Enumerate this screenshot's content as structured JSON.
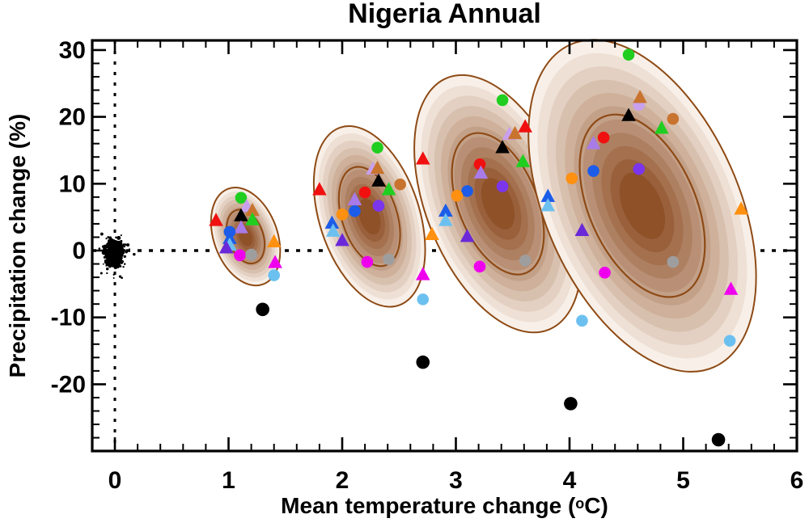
{
  "title": "Nigeria Annual",
  "axes": {
    "ylabel": "Precipitation change (%)",
    "xlabel_prefix": "Mean temperature change (",
    "xlabel_sup": "o",
    "xlabel_suffix": "C)"
  },
  "chart_data": {
    "type": "scatter",
    "title": "Nigeria Annual",
    "xlabel": "Mean temperature change (°C)",
    "ylabel": "Precipitation change (%)",
    "xlim": [
      -0.2,
      6.0
    ],
    "ylim": [
      -30.0,
      31.4
    ],
    "x_ticks": [
      0,
      1,
      2,
      3,
      4,
      5,
      6
    ],
    "y_ticks": [
      30,
      20,
      10,
      0,
      -10,
      -20
    ],
    "x_minor_step": 0.2,
    "y_minor_step": 2,
    "zero_lines": {
      "x": 0,
      "y": 0,
      "style": "dotted",
      "color": "#000000"
    },
    "grid": false,
    "colors": {
      "green": "#20CE20",
      "red": "#F01010",
      "blue": "#1C5CE8",
      "sky": "#6CC0F0",
      "orange": "#FF9010",
      "peru": "#C8742F",
      "purple": "#7B35EC",
      "mpurple": "#A87BE8",
      "plum": "#C9A0EE",
      "dviolet": "#6A28D8",
      "magenta": "#EE00EE",
      "gray": "#9E9E9E",
      "black": "#000000"
    },
    "contour_fill_colors": [
      "#F8F0E8",
      "#EEE0D5",
      "#E3D0C2",
      "#D8C0AE",
      "#CEB09B",
      "#C3A088",
      "#B99075",
      "#AE8062",
      "#A4704E",
      "#99603B",
      "#8F5128"
    ],
    "contour_line_color": "#8E4A15",
    "origin_cloud": {
      "t_center": 0.0,
      "p_center": -0.3,
      "n_core": 420,
      "t_sigma": 0.055,
      "p_sigma": 1.3,
      "n_outlier": 70,
      "t_sigma_out": 0.1,
      "p_sigma_out": 2.4
    },
    "clusters": [
      {
        "name": "cluster-1",
        "ellipse": {
          "t": 1.15,
          "p": 2.1,
          "rt": 0.28,
          "rp": 7.6,
          "rot_deg_screen": -20
        },
        "markers": [
          {
            "shape": "circle",
            "color": "green",
            "t": 1.11,
            "p": 7.9
          },
          {
            "shape": "triangle",
            "color": "red",
            "t": 0.89,
            "p": 4.5
          },
          {
            "shape": "triangle",
            "color": "plum",
            "t": 1.16,
            "p": 6.6
          },
          {
            "shape": "triangle",
            "color": "peru",
            "t": 1.21,
            "p": 6.0
          },
          {
            "shape": "triangle",
            "color": "black",
            "t": 1.11,
            "p": 5.2
          },
          {
            "shape": "triangle",
            "color": "green",
            "t": 1.21,
            "p": 4.6
          },
          {
            "shape": "triangle",
            "color": "mpurple",
            "t": 1.11,
            "p": 3.4
          },
          {
            "shape": "circle",
            "color": "blue",
            "t": 1.01,
            "p": 2.8
          },
          {
            "shape": "triangle",
            "color": "blue",
            "t": 1.01,
            "p": 1.8
          },
          {
            "shape": "triangle",
            "color": "sky",
            "t": 1.01,
            "p": 0.8
          },
          {
            "shape": "triangle",
            "color": "dviolet",
            "t": 0.98,
            "p": 0.4
          },
          {
            "shape": "circle",
            "color": "magenta",
            "t": 1.1,
            "p": -0.7
          },
          {
            "shape": "circle",
            "color": "gray",
            "t": 1.2,
            "p": -0.6
          },
          {
            "shape": "triangle",
            "color": "orange",
            "t": 1.4,
            "p": 1.3
          },
          {
            "shape": "triangle",
            "color": "magenta",
            "t": 1.41,
            "p": -1.8
          },
          {
            "shape": "circle",
            "color": "sky",
            "t": 1.4,
            "p": -3.7
          },
          {
            "shape": "circle",
            "color": "black",
            "t": 1.3,
            "p": -8.8
          }
        ]
      },
      {
        "name": "cluster-2",
        "ellipse": {
          "t": 2.24,
          "p": 5.1,
          "rt": 0.44,
          "rp": 14.0,
          "rot_deg_screen": -18
        },
        "markers": [
          {
            "shape": "circle",
            "color": "green",
            "t": 2.31,
            "p": 15.4
          },
          {
            "shape": "triangle",
            "color": "red",
            "t": 1.8,
            "p": 9.1
          },
          {
            "shape": "triangle",
            "color": "plum",
            "t": 2.27,
            "p": 12.2
          },
          {
            "shape": "triangle",
            "color": "peru",
            "t": 2.31,
            "p": 12.3
          },
          {
            "shape": "triangle",
            "color": "black",
            "t": 2.32,
            "p": 10.4
          },
          {
            "shape": "triangle",
            "color": "green",
            "t": 2.41,
            "p": 9.1
          },
          {
            "shape": "circle",
            "color": "peru",
            "t": 2.51,
            "p": 9.9
          },
          {
            "shape": "triangle",
            "color": "mpurple",
            "t": 2.11,
            "p": 7.6
          },
          {
            "shape": "circle",
            "color": "red",
            "t": 2.2,
            "p": 8.7
          },
          {
            "shape": "circle",
            "color": "purple",
            "t": 2.32,
            "p": 6.7
          },
          {
            "shape": "circle",
            "color": "blue",
            "t": 2.11,
            "p": 5.9
          },
          {
            "shape": "circle",
            "color": "orange",
            "t": 2.0,
            "p": 5.4
          },
          {
            "shape": "triangle",
            "color": "blue",
            "t": 1.91,
            "p": 4.1
          },
          {
            "shape": "triangle",
            "color": "sky",
            "t": 1.92,
            "p": 2.9
          },
          {
            "shape": "triangle",
            "color": "dviolet",
            "t": 2.0,
            "p": 1.5
          },
          {
            "shape": "circle",
            "color": "magenta",
            "t": 2.22,
            "p": -1.7
          },
          {
            "shape": "circle",
            "color": "gray",
            "t": 2.41,
            "p": -1.3
          },
          {
            "shape": "circle",
            "color": "black",
            "t": 2.71,
            "p": -16.7
          }
        ]
      },
      {
        "name": "cluster-3",
        "ellipse": {
          "t": 3.37,
          "p": 7.0,
          "rt": 0.63,
          "rp": 20.3,
          "rot_deg_screen": -22
        },
        "markers": [
          {
            "shape": "circle",
            "color": "green",
            "t": 3.41,
            "p": 22.5
          },
          {
            "shape": "triangle",
            "color": "red",
            "t": 2.71,
            "p": 13.7
          },
          {
            "shape": "triangle",
            "color": "plum",
            "t": 3.47,
            "p": 17.4
          },
          {
            "shape": "triangle",
            "color": "peru",
            "t": 3.52,
            "p": 17.5
          },
          {
            "shape": "triangle",
            "color": "black",
            "t": 3.41,
            "p": 15.4
          },
          {
            "shape": "triangle",
            "color": "green",
            "t": 3.59,
            "p": 13.3
          },
          {
            "shape": "circle",
            "color": "red",
            "t": 3.21,
            "p": 12.9
          },
          {
            "shape": "triangle",
            "color": "mpurple",
            "t": 3.22,
            "p": 11.6
          },
          {
            "shape": "circle",
            "color": "purple",
            "t": 3.41,
            "p": 9.6
          },
          {
            "shape": "circle",
            "color": "blue",
            "t": 3.1,
            "p": 8.9
          },
          {
            "shape": "circle",
            "color": "orange",
            "t": 3.01,
            "p": 8.2
          },
          {
            "shape": "triangle",
            "color": "blue",
            "t": 2.91,
            "p": 5.9
          },
          {
            "shape": "triangle",
            "color": "sky",
            "t": 2.91,
            "p": 4.5
          },
          {
            "shape": "triangle",
            "color": "orange",
            "t": 2.79,
            "p": 2.4
          },
          {
            "shape": "triangle",
            "color": "dviolet",
            "t": 3.1,
            "p": 2.1
          },
          {
            "shape": "circle",
            "color": "magenta",
            "t": 3.21,
            "p": -2.4
          },
          {
            "shape": "circle",
            "color": "gray",
            "t": 3.61,
            "p": -1.5
          },
          {
            "shape": "triangle",
            "color": "magenta",
            "t": 2.71,
            "p": -3.6
          },
          {
            "shape": "circle",
            "color": "sky",
            "t": 2.71,
            "p": -7.3
          },
          {
            "shape": "circle",
            "color": "sky",
            "t": 4.11,
            "p": -10.5
          },
          {
            "shape": "circle",
            "color": "black",
            "t": 4.01,
            "p": -22.9
          }
        ]
      },
      {
        "name": "cluster-4",
        "ellipse": {
          "t": 4.64,
          "p": 6.7,
          "rt": 0.85,
          "rp": 26.4,
          "rot_deg_screen": -24
        },
        "markers": [
          {
            "shape": "circle",
            "color": "green",
            "t": 4.52,
            "p": 29.3
          },
          {
            "shape": "triangle",
            "color": "red",
            "t": 3.61,
            "p": 18.5
          },
          {
            "shape": "circle",
            "color": "plum",
            "t": 4.61,
            "p": 21.8
          },
          {
            "shape": "triangle",
            "color": "peru",
            "t": 4.62,
            "p": 22.9
          },
          {
            "shape": "triangle",
            "color": "black",
            "t": 4.52,
            "p": 20.2
          },
          {
            "shape": "circle",
            "color": "peru",
            "t": 4.91,
            "p": 19.7
          },
          {
            "shape": "triangle",
            "color": "green",
            "t": 4.81,
            "p": 18.3
          },
          {
            "shape": "circle",
            "color": "red",
            "t": 4.3,
            "p": 16.9
          },
          {
            "shape": "triangle",
            "color": "mpurple",
            "t": 4.21,
            "p": 16.0
          },
          {
            "shape": "circle",
            "color": "purple",
            "t": 4.61,
            "p": 12.2
          },
          {
            "shape": "circle",
            "color": "blue",
            "t": 4.21,
            "p": 11.9
          },
          {
            "shape": "circle",
            "color": "orange",
            "t": 4.02,
            "p": 10.8
          },
          {
            "shape": "triangle",
            "color": "blue",
            "t": 3.81,
            "p": 8.1
          },
          {
            "shape": "triangle",
            "color": "sky",
            "t": 3.81,
            "p": 6.7
          },
          {
            "shape": "triangle",
            "color": "dviolet",
            "t": 4.11,
            "p": 3.0
          },
          {
            "shape": "circle",
            "color": "magenta",
            "t": 4.31,
            "p": -3.3
          },
          {
            "shape": "circle",
            "color": "gray",
            "t": 4.91,
            "p": -1.7
          },
          {
            "shape": "triangle",
            "color": "orange",
            "t": 5.51,
            "p": 6.2
          },
          {
            "shape": "triangle",
            "color": "magenta",
            "t": 5.42,
            "p": -5.8
          },
          {
            "shape": "circle",
            "color": "sky",
            "t": 5.41,
            "p": -13.5
          },
          {
            "shape": "circle",
            "color": "black",
            "t": 5.31,
            "p": -28.3
          }
        ]
      }
    ]
  }
}
